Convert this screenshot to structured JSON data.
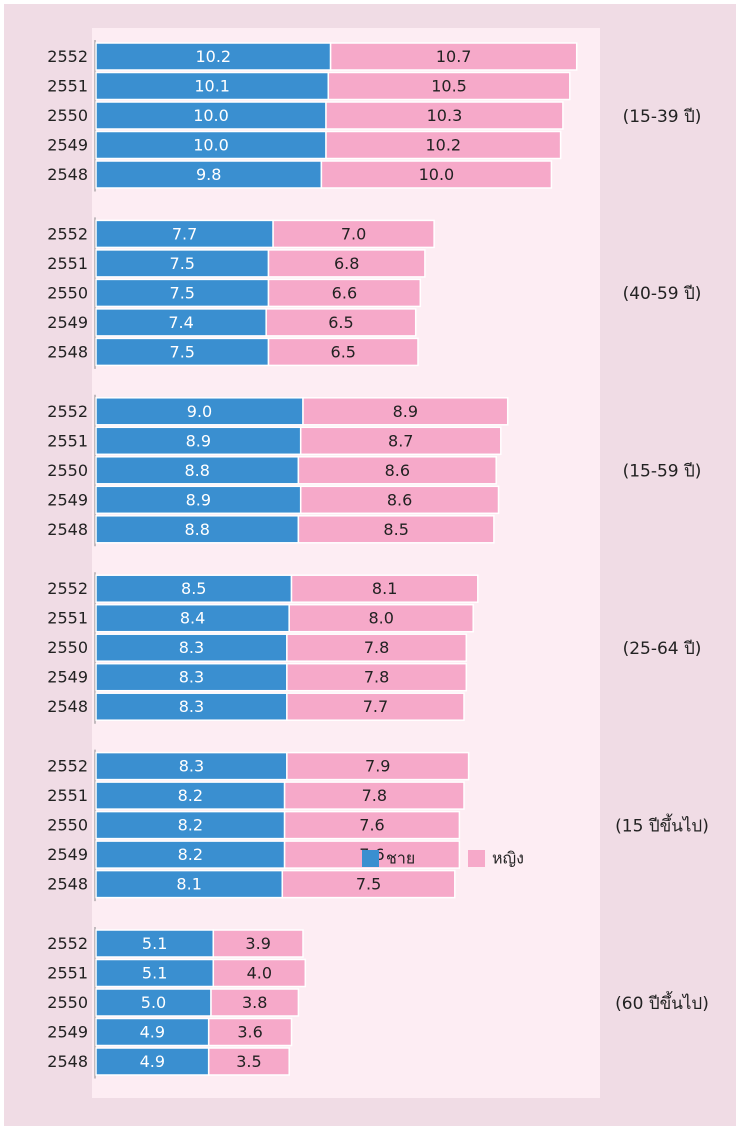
{
  "chart_data": {
    "type": "bar",
    "orientation": "horizontal",
    "stacked": true,
    "series": [
      {
        "name": "ชาย",
        "color": "#3a8fd0"
      },
      {
        "name": "หญิง",
        "color": "#f6a9c9"
      }
    ],
    "groups": [
      {
        "label": "(15-39 ปี)",
        "categories": [
          "2552",
          "2551",
          "2550",
          "2549",
          "2548"
        ],
        "series": [
          {
            "values": [
              10.2,
              10.1,
              10.0,
              10.0,
              9.8
            ],
            "value_labels": [
              "10.2",
              "10.1",
              "10.0",
              "10.0",
              "9.8"
            ]
          },
          {
            "values": [
              10.7,
              10.5,
              10.3,
              10.2,
              10.0
            ],
            "value_labels": [
              "10.7",
              "10.5",
              "10.3",
              "10.2",
              "10.0"
            ]
          }
        ]
      },
      {
        "label": "(40-59 ปี)",
        "categories": [
          "2552",
          "2551",
          "2550",
          "2549",
          "2548"
        ],
        "series": [
          {
            "values": [
              7.7,
              7.5,
              7.5,
              7.4,
              7.5
            ],
            "value_labels": [
              "7.7",
              "7.5",
              "7.5",
              "7.4",
              "7.5"
            ]
          },
          {
            "values": [
              7.0,
              6.8,
              6.6,
              6.5,
              6.5
            ],
            "value_labels": [
              "7.0",
              "6.8",
              "6.6",
              "6.5",
              "6.5"
            ]
          }
        ]
      },
      {
        "label": "(15-59 ปี)",
        "categories": [
          "2552",
          "2551",
          "2550",
          "2549",
          "2548"
        ],
        "series": [
          {
            "values": [
              9.0,
              8.9,
              8.8,
              8.9,
              8.8
            ],
            "value_labels": [
              "9.0",
              "8.9",
              "8.8",
              "8.9",
              "8.8"
            ]
          },
          {
            "values": [
              8.9,
              8.7,
              8.6,
              8.6,
              8.5
            ],
            "value_labels": [
              "8.9",
              "8.7",
              "8.6",
              "8.6",
              "8.5"
            ]
          }
        ]
      },
      {
        "label": "(25-64 ปี)",
        "categories": [
          "2552",
          "2551",
          "2550",
          "2549",
          "2548"
        ],
        "series": [
          {
            "values": [
              8.5,
              8.4,
              8.3,
              8.3,
              8.3
            ],
            "value_labels": [
              "8.5",
              "8.4",
              "8.3",
              "8.3",
              "8.3"
            ]
          },
          {
            "values": [
              8.1,
              8.0,
              7.8,
              7.8,
              7.7
            ],
            "value_labels": [
              "8.1",
              "8.0",
              "7.8",
              "7.8",
              "7.7"
            ]
          }
        ]
      },
      {
        "label": "(15 ปีขึ้นไป)",
        "categories": [
          "2552",
          "2551",
          "2550",
          "2549",
          "2548"
        ],
        "series": [
          {
            "values": [
              8.3,
              8.2,
              8.2,
              8.2,
              8.1
            ],
            "value_labels": [
              "8.3",
              "8.2",
              "8.2",
              "8.2",
              "8.1"
            ]
          },
          {
            "values": [
              7.9,
              7.8,
              7.6,
              7.6,
              7.5
            ],
            "value_labels": [
              "7.9",
              "7.8",
              "7.6",
              "7.6",
              "7.5"
            ]
          }
        ]
      },
      {
        "label": "(60 ปีขึ้นไป)",
        "categories": [
          "2552",
          "2551",
          "2550",
          "2549",
          "2548"
        ],
        "series": [
          {
            "values": [
              5.1,
              5.1,
              5.0,
              4.9,
              4.9
            ],
            "value_labels": [
              "5.1",
              "5.1",
              "5.0",
              "4.9",
              "4.9"
            ]
          },
          {
            "values": [
              3.9,
              4.0,
              3.8,
              3.6,
              3.5
            ],
            "value_labels": [
              "3.9",
              "4.0",
              "3.8",
              "3.6",
              "3.5"
            ]
          }
        ]
      }
    ]
  }
}
